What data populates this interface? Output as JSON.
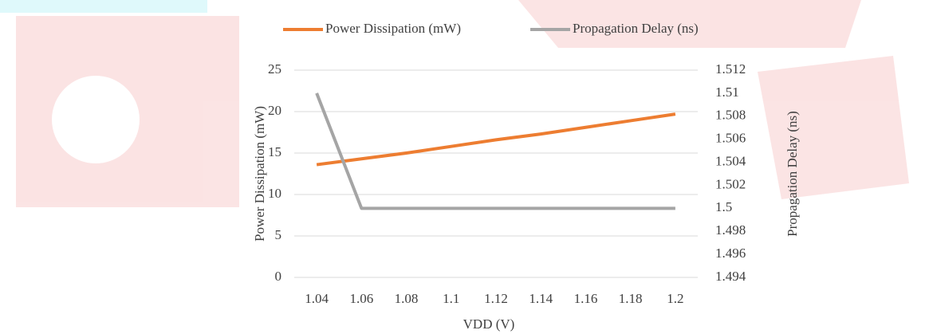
{
  "chart_data": {
    "type": "line",
    "x_label": "VDD (V)",
    "y_label": "Power Dissipation (mW)",
    "y2_label": "Propagation Delay (ns)",
    "categories": [
      "1.04",
      "1.06",
      "1.08",
      "1.1",
      "1.12",
      "1.14",
      "1.16",
      "1.18",
      "1.2"
    ],
    "series": [
      {
        "name": "Power Dissipation (mW)",
        "color": "#ed7d31",
        "values": [
          13.6,
          14.3,
          15.0,
          15.8,
          16.6,
          17.3,
          18.1,
          18.9,
          19.7
        ]
      },
      {
        "name": "Propagation Delay (ns)",
        "color": "#a5a5a5",
        "axis": "y2",
        "values": [
          1.51,
          1.5,
          1.5,
          1.5,
          1.5,
          1.5,
          1.5,
          1.5,
          1.5
        ]
      }
    ],
    "ylim": [
      0,
      25
    ],
    "yticks": [
      0,
      5,
      10,
      15,
      20,
      25
    ],
    "y2lim": [
      1.494,
      1.512
    ],
    "y2ticks": [
      1.494,
      1.496,
      1.498,
      1.5,
      1.502,
      1.504,
      1.506,
      1.508,
      1.51,
      1.512
    ],
    "grid": true,
    "legend": "top"
  }
}
